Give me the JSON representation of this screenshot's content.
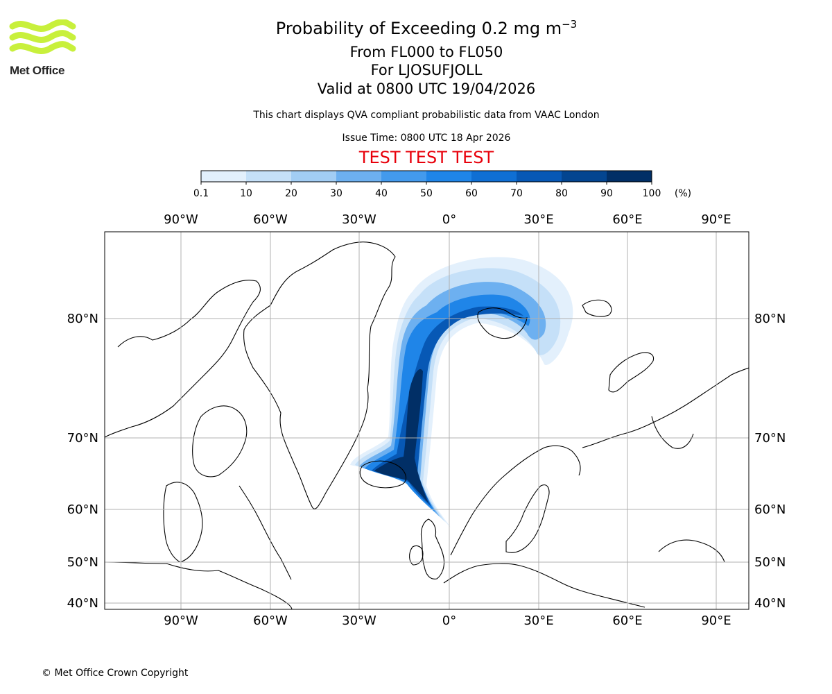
{
  "header": {
    "title": "Probability of Exceeding 0.2 mg m",
    "title_superscript": "−3",
    "level_range": "From FL000 to FL050",
    "volcano": "For LJOSUFJOLL",
    "valid_time": "Valid at 0800 UTC 19/04/2026",
    "disclaimer": "This chart displays QVA compliant probabilistic data from VAAC London",
    "issue_time": "Issue Time: 0800 UTC 18 Apr 2026",
    "test_banner": "TEST TEST TEST"
  },
  "logo": {
    "text": "Met Office",
    "color": "#c8f03c"
  },
  "colorbar": {
    "ticks": [
      "0.1",
      "10",
      "20",
      "30",
      "40",
      "50",
      "60",
      "70",
      "80",
      "90",
      "100"
    ],
    "unit": "(%)",
    "colors": [
      "#e3f0fc",
      "#c5e0f8",
      "#a2cdf4",
      "#6db0f0",
      "#439aed",
      "#1f85e8",
      "#0f6fd4",
      "#0758b5",
      "#034590",
      "#012f66"
    ]
  },
  "map": {
    "lon_labels": [
      "90°W",
      "60°W",
      "30°W",
      "0°",
      "30°E",
      "60°E",
      "90°E"
    ],
    "lat_labels": [
      "80°N",
      "70°N",
      "60°N",
      "50°N",
      "40°N"
    ],
    "coastline_color": "#000000",
    "grid_color": "#b0b0b0"
  },
  "footer": {
    "copyright": "© Met Office Crown Copyright"
  }
}
